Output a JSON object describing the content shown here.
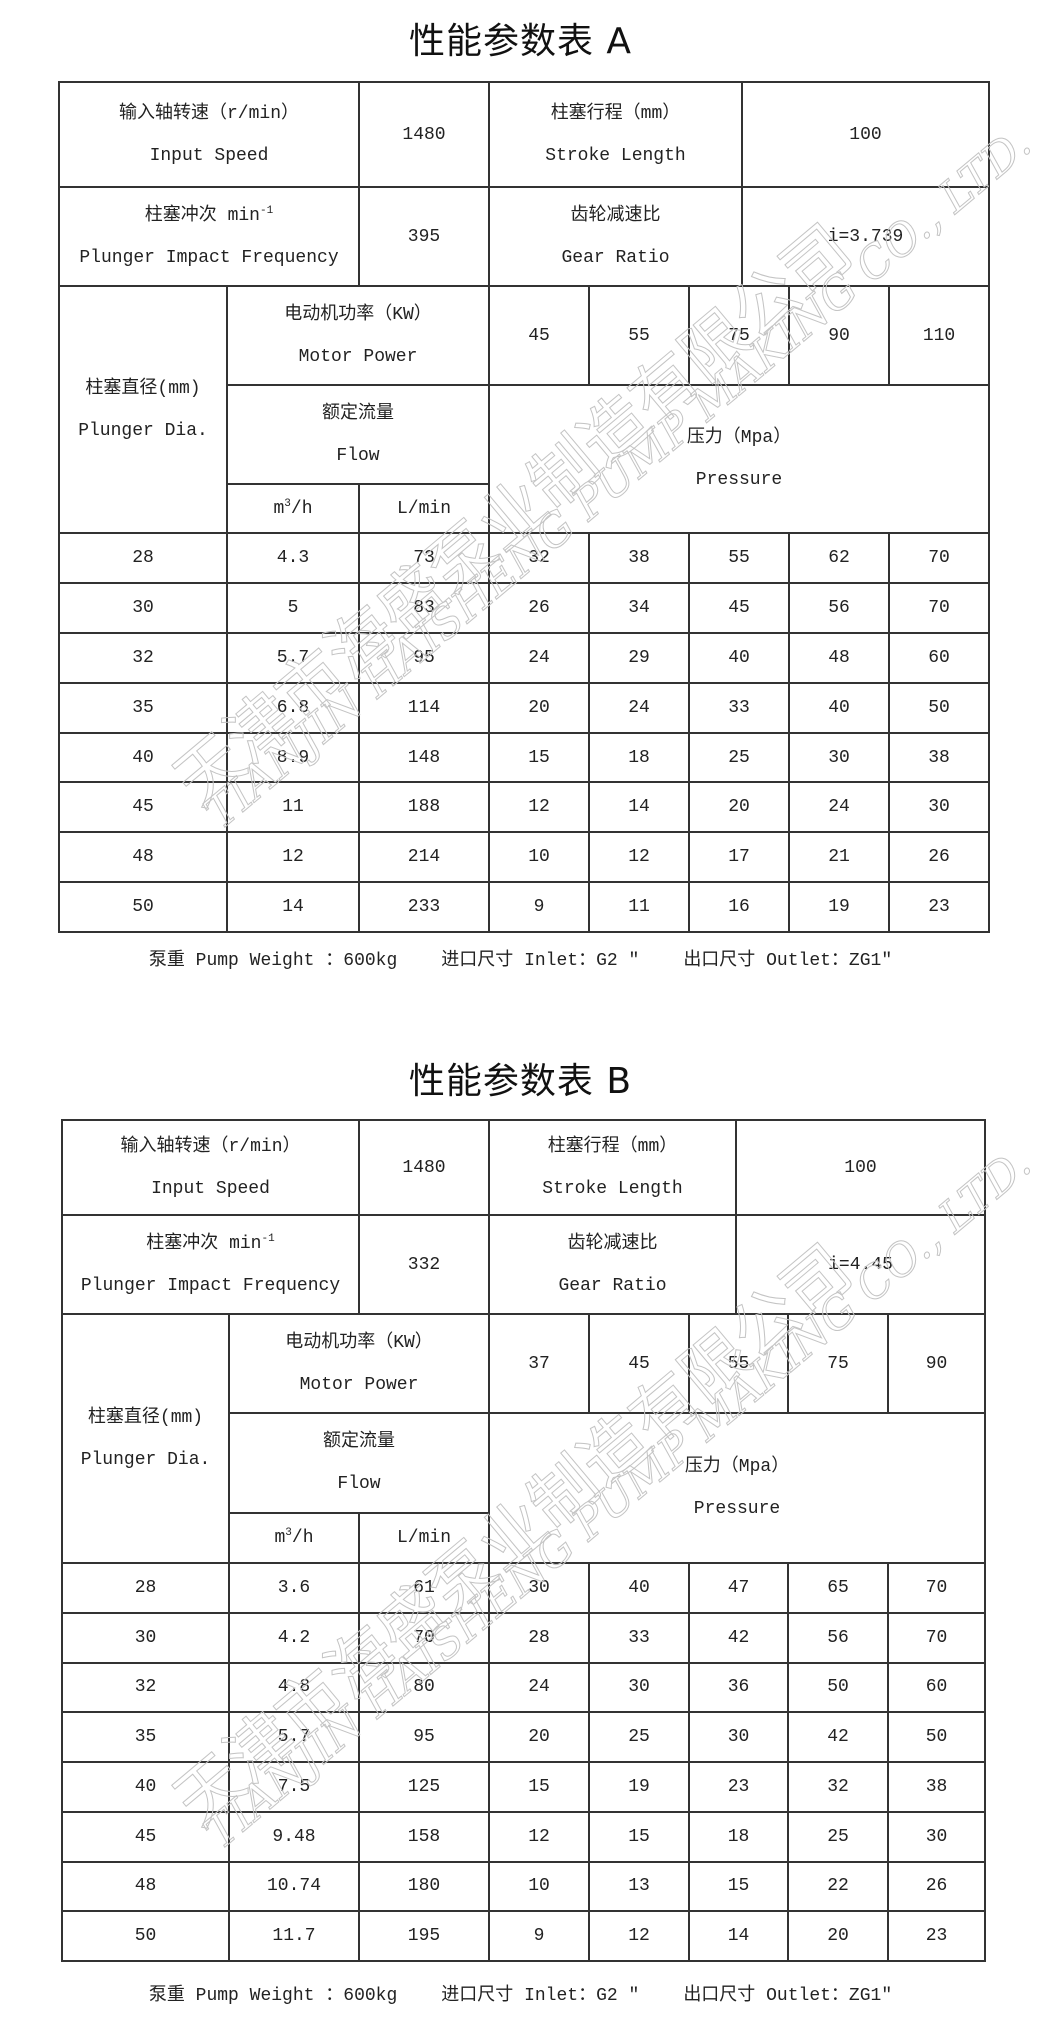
{
  "tables": [
    {
      "title": "性能参数表 A",
      "input_speed_cn": "输入轴转速（r/min）",
      "input_speed_en": "Input Speed",
      "input_speed_value": "1480",
      "stroke_cn": "柱塞行程（mm）",
      "stroke_en": "Stroke Length",
      "stroke_value": "100",
      "impact_cn": "柱塞冲次 min",
      "impact_sup": "-1",
      "impact_en": "Plunger Impact Frequency",
      "impact_value": "395",
      "gear_cn": "齿轮减速比",
      "gear_en": "Gear Ratio",
      "gear_value": "i=3.739",
      "dia_cn": "柱塞直径(mm)",
      "dia_en": "Plunger Dia.",
      "power_cn": "电动机功率（KW）",
      "power_en": "Motor Power",
      "powers": [
        "45",
        "55",
        "75",
        "90",
        "110"
      ],
      "flow_cn": "额定流量",
      "flow_en": "Flow",
      "pressure_cn": "压力（Mpa）",
      "pressure_en": "Pressure",
      "unit_m3h": "m",
      "unit_m3h_sup": "3",
      "unit_m3h_tail": "/h",
      "unit_lmin": "L/min",
      "rows": [
        [
          "28",
          "4.3",
          "73",
          "32",
          "38",
          "55",
          "62",
          "70"
        ],
        [
          "30",
          "5",
          "83",
          "26",
          "34",
          "45",
          "56",
          "70"
        ],
        [
          "32",
          "5.7",
          "95",
          "24",
          "29",
          "40",
          "48",
          "60"
        ],
        [
          "35",
          "6.8",
          "114",
          "20",
          "24",
          "33",
          "40",
          "50"
        ],
        [
          "40",
          "8.9",
          "148",
          "15",
          "18",
          "25",
          "30",
          "38"
        ],
        [
          "45",
          "11",
          "188",
          "12",
          "14",
          "20",
          "24",
          "30"
        ],
        [
          "48",
          "12",
          "214",
          "10",
          "12",
          "17",
          "21",
          "26"
        ],
        [
          "50",
          "14",
          "233",
          "9",
          "11",
          "16",
          "19",
          "23"
        ]
      ],
      "footer": {
        "weight": "泵重 Pump Weight ：600kg",
        "inlet": "进口尺寸 Inlet：G2 ″",
        "outlet": "出口尺寸 Outlet：ZG1″"
      }
    },
    {
      "title": "性能参数表 B",
      "input_speed_cn": "输入轴转速（r/min）",
      "input_speed_en": "Input Speed",
      "input_speed_value": "1480",
      "stroke_cn": "柱塞行程（mm）",
      "stroke_en": "Stroke Length",
      "stroke_value": "100",
      "impact_cn": "柱塞冲次 min",
      "impact_sup": "-1",
      "impact_en": "Plunger Impact Frequency",
      "impact_value": "332",
      "gear_cn": "齿轮减速比",
      "gear_en": "Gear Ratio",
      "gear_value": "i=4.45",
      "dia_cn": "柱塞直径(mm)",
      "dia_en": "Plunger Dia.",
      "power_cn": "电动机功率（KW）",
      "power_en": "Motor Power",
      "powers": [
        "37",
        "45",
        "55",
        "75",
        "90"
      ],
      "flow_cn": "额定流量",
      "flow_en": "Flow",
      "pressure_cn": "压力（Mpa）",
      "pressure_en": "Pressure",
      "unit_m3h": "m",
      "unit_m3h_sup": "3",
      "unit_m3h_tail": "/h",
      "unit_lmin": "L/min",
      "rows": [
        [
          "28",
          "3.6",
          "61",
          "30",
          "40",
          "47",
          "65",
          "70"
        ],
        [
          "30",
          "4.2",
          "70",
          "28",
          "33",
          "42",
          "56",
          "70"
        ],
        [
          "32",
          "4.8",
          "80",
          "24",
          "30",
          "36",
          "50",
          "60"
        ],
        [
          "35",
          "5.7",
          "95",
          "20",
          "25",
          "30",
          "42",
          "50"
        ],
        [
          "40",
          "7.5",
          "125",
          "15",
          "19",
          "23",
          "32",
          "38"
        ],
        [
          "45",
          "9.48",
          "158",
          "12",
          "15",
          "18",
          "25",
          "30"
        ],
        [
          "48",
          "10.74",
          "180",
          "10",
          "13",
          "15",
          "22",
          "26"
        ],
        [
          "50",
          "11.7",
          "195",
          "9",
          "12",
          "14",
          "20",
          "23"
        ]
      ],
      "footer": {
        "weight": "泵重 Pump Weight ：600kg",
        "inlet": "进口尺寸 Inlet：G2 ″",
        "outlet": "出口尺寸 Outlet：ZG1″"
      }
    }
  ],
  "watermark": {
    "cn": "天津市海盛泵业制造有限公司",
    "en": "TIANJIN HAISHENG PUMP MAKING CO., LTD."
  }
}
